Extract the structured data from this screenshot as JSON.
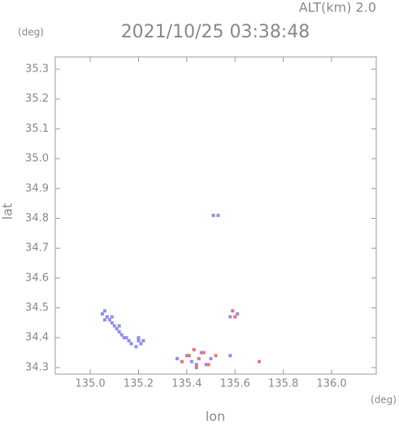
{
  "chart_data": {
    "type": "scatter",
    "title": "2021/10/25 03:38:48",
    "subtitle": "ALT(km) 2.0",
    "y_unit": "(deg)",
    "x_unit": "(deg)",
    "xlabel": "lon",
    "ylabel": "lat",
    "xlim": [
      134.855,
      136.185
    ],
    "ylim": [
      34.278,
      35.341
    ],
    "xticks": [
      {
        "value": 135.0,
        "label": "135.0"
      },
      135.2,
      135.4,
      135.6,
      135.8,
      {
        "value": 136.0,
        "label": "136.0"
      }
    ],
    "yticks": [
      34.3,
      34.4,
      34.5,
      34.6,
      34.7,
      34.8,
      34.9,
      {
        "value": 35.0,
        "label": "35.0"
      },
      35.1,
      35.2,
      35.3
    ],
    "series": [
      {
        "color": "#8a8ff0",
        "x": [
          135.05,
          135.06,
          135.07,
          135.08,
          135.09,
          135.1,
          135.11,
          135.12,
          135.13,
          135.14,
          135.15,
          135.16,
          135.17,
          135.19,
          135.2,
          135.21,
          135.2,
          135.22,
          135.06,
          135.09,
          135.12,
          135.51,
          135.53,
          135.58,
          135.61,
          135.58,
          135.36,
          135.42,
          135.46,
          135.5,
          135.44,
          135.4,
          135.48
        ],
        "y": [
          34.48,
          34.49,
          34.47,
          34.46,
          34.45,
          34.44,
          34.43,
          34.42,
          34.41,
          34.4,
          34.4,
          34.39,
          34.38,
          34.37,
          34.39,
          34.38,
          34.4,
          34.39,
          34.46,
          34.47,
          34.44,
          34.81,
          34.81,
          34.47,
          34.48,
          34.34,
          34.33,
          34.32,
          34.35,
          34.33,
          34.31,
          34.34,
          34.31
        ]
      },
      {
        "color": "#f07070",
        "x": [
          135.59,
          135.7,
          135.38,
          135.41,
          135.45,
          135.47,
          135.49,
          135.43,
          135.52,
          135.44,
          135.6
        ],
        "y": [
          34.49,
          34.32,
          34.32,
          34.34,
          34.33,
          34.35,
          34.31,
          34.36,
          34.34,
          34.3,
          34.47
        ]
      }
    ]
  }
}
